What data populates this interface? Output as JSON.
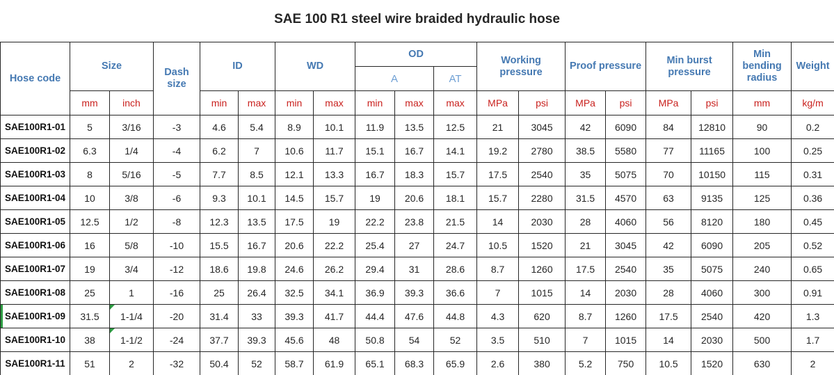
{
  "title": "SAE 100 R1 steel wire braided hydraulic hose",
  "colors": {
    "header_blue": "#4579b2",
    "subheader_blue": "#6e9fd4",
    "unit_red": "#c9211e",
    "body_text": "#262626",
    "grid_border": "#262626",
    "excel_marker_green": "#2f9e44"
  },
  "chart_data": {
    "type": "table",
    "title": "SAE 100 R1 steel wire braided hydraulic hose",
    "header": {
      "hose_code": "Hose code",
      "size": "Size",
      "dash_size": "Dash size",
      "id": "ID",
      "wd": "WD",
      "od": "OD",
      "od_a": "A",
      "od_at": "AT",
      "working_pressure": "Working pressure",
      "proof_pressure": "Proof pressure",
      "min_burst_pressure": "Min burst pressure",
      "min_bending_radius": "Min bending radius",
      "weight": "Weight"
    },
    "units_row": [
      "mm",
      "inch",
      "min",
      "max",
      "min",
      "max",
      "min",
      "max",
      "max",
      "MPa",
      "psi",
      "MPa",
      "psi",
      "MPa",
      "psi",
      "mm",
      "kg/m"
    ],
    "column_keys": [
      "hose_code",
      "size_mm",
      "size_inch",
      "dash_size",
      "id_min",
      "id_max",
      "wd_min",
      "wd_max",
      "od_a_min",
      "od_a_max",
      "od_at_max",
      "working_mpa",
      "working_psi",
      "proof_mpa",
      "proof_psi",
      "burst_mpa",
      "burst_psi",
      "bend_radius_mm",
      "weight_kg_m"
    ],
    "rows": [
      {
        "cells": [
          "SAE100R1-01",
          "5",
          "3/16",
          "-3",
          "4.6",
          "5.4",
          "8.9",
          "10.1",
          "11.9",
          "13.5",
          "12.5",
          "21",
          "3045",
          "42",
          "6090",
          "84",
          "12810",
          "90",
          "0.2"
        ]
      },
      {
        "cells": [
          "SAE100R1-02",
          "6.3",
          "1/4",
          "-4",
          "6.2",
          "7",
          "10.6",
          "11.7",
          "15.1",
          "16.7",
          "14.1",
          "19.2",
          "2780",
          "38.5",
          "5580",
          "77",
          "11165",
          "100",
          "0.25"
        ]
      },
      {
        "cells": [
          "SAE100R1-03",
          "8",
          "5/16",
          "-5",
          "7.7",
          "8.5",
          "12.1",
          "13.3",
          "16.7",
          "18.3",
          "15.7",
          "17.5",
          "2540",
          "35",
          "5075",
          "70",
          "10150",
          "115",
          "0.31"
        ]
      },
      {
        "cells": [
          "SAE100R1-04",
          "10",
          "3/8",
          "-6",
          "9.3",
          "10.1",
          "14.5",
          "15.7",
          "19",
          "20.6",
          "18.1",
          "15.7",
          "2280",
          "31.5",
          "4570",
          "63",
          "9135",
          "125",
          "0.36"
        ]
      },
      {
        "cells": [
          "SAE100R1-05",
          "12.5",
          "1/2",
          "-8",
          "12.3",
          "13.5",
          "17.5",
          "19",
          "22.2",
          "23.8",
          "21.5",
          "14",
          "2030",
          "28",
          "4060",
          "56",
          "8120",
          "180",
          "0.45"
        ]
      },
      {
        "cells": [
          "SAE100R1-06",
          "16",
          "5/8",
          "-10",
          "15.5",
          "16.7",
          "20.6",
          "22.2",
          "25.4",
          "27",
          "24.7",
          "10.5",
          "1520",
          "21",
          "3045",
          "42",
          "6090",
          "205",
          "0.52"
        ]
      },
      {
        "cells": [
          "SAE100R1-07",
          "19",
          "3/4",
          "-12",
          "18.6",
          "19.8",
          "24.6",
          "26.2",
          "29.4",
          "31",
          "28.6",
          "8.7",
          "1260",
          "17.5",
          "2540",
          "35",
          "5075",
          "240",
          "0.65"
        ]
      },
      {
        "cells": [
          "SAE100R1-08",
          "25",
          "1",
          "-16",
          "25",
          "26.4",
          "32.5",
          "34.1",
          "36.9",
          "39.3",
          "36.6",
          "7",
          "1015",
          "14",
          "2030",
          "28",
          "4060",
          "300",
          "0.91"
        ]
      },
      {
        "cells": [
          "SAE100R1-09",
          "31.5",
          "1-1/4",
          "-20",
          "31.4",
          "33",
          "39.3",
          "41.7",
          "44.4",
          "47.6",
          "44.8",
          "4.3",
          "620",
          "8.7",
          "1260",
          "17.5",
          "2540",
          "420",
          "1.3"
        ],
        "green_left_edge": true,
        "green_triangle_col": 2
      },
      {
        "cells": [
          "SAE100R1-10",
          "38",
          "1-1/2",
          "-24",
          "37.7",
          "39.3",
          "45.6",
          "48",
          "50.8",
          "54",
          "52",
          "3.5",
          "510",
          "7",
          "1015",
          "14",
          "2030",
          "500",
          "1.7"
        ],
        "green_triangle_col": 2
      },
      {
        "cells": [
          "SAE100R1-11",
          "51",
          "2",
          "-32",
          "50.4",
          "52",
          "58.7",
          "61.9",
          "65.1",
          "68.3",
          "65.9",
          "2.6",
          "380",
          "5.2",
          "750",
          "10.5",
          "1520",
          "630",
          "2"
        ]
      }
    ]
  }
}
